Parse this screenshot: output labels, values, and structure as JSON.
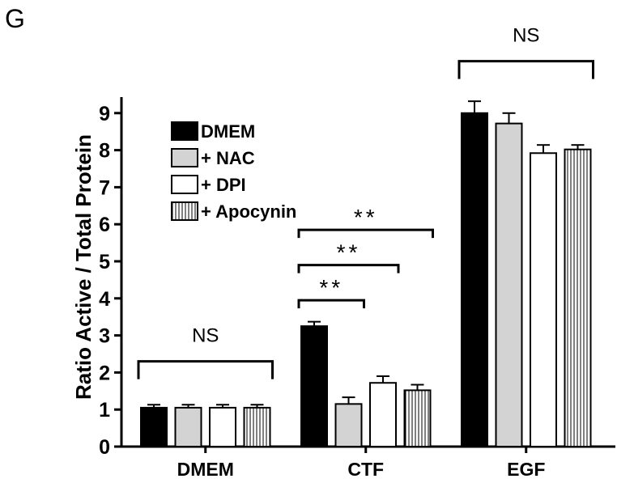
{
  "panel_label": "G",
  "chart_data": {
    "type": "bar",
    "title": "",
    "xlabel": "",
    "ylabel": "Ratio Active / Total Protein",
    "ylim": [
      0,
      9.5
    ],
    "yticks": [
      "0",
      "1",
      "2",
      "3",
      "4",
      "5",
      "6",
      "7",
      "8",
      "9"
    ],
    "categories": [
      "DMEM",
      "CTF",
      "EGF"
    ],
    "legend_position": "top-left",
    "series": [
      {
        "name": "DMEM",
        "fill": "#000000",
        "pattern": "solid",
        "values": [
          1.05,
          3.25,
          9.0
        ],
        "errors": [
          0.08,
          0.12,
          0.32
        ]
      },
      {
        "name": "+ NAC",
        "fill": "#d3d3d3",
        "pattern": "solid",
        "values": [
          1.05,
          1.15,
          8.72
        ],
        "errors": [
          0.08,
          0.18,
          0.28
        ]
      },
      {
        "name": "+ DPI",
        "fill": "#ffffff",
        "pattern": "solid",
        "values": [
          1.05,
          1.72,
          7.92
        ],
        "errors": [
          0.08,
          0.18,
          0.22
        ]
      },
      {
        "name": "+ Apocynin",
        "fill": "#ffffff",
        "pattern": "vertical-stripes",
        "values": [
          1.05,
          1.52,
          8.02
        ],
        "errors": [
          0.08,
          0.15,
          0.12
        ]
      }
    ],
    "annotations": [
      {
        "group": 0,
        "from_series": 0,
        "to_series": 3,
        "label": "NS",
        "level": 2.3
      },
      {
        "group": 1,
        "from_series": 0,
        "to_series": 1,
        "label": "**",
        "level": 3.95
      },
      {
        "group": 1,
        "from_series": 0,
        "to_series": 2,
        "label": "**",
        "level": 4.9
      },
      {
        "group": 1,
        "from_series": 0,
        "to_series": 3,
        "label": "**",
        "level": 5.85
      },
      {
        "group": 2,
        "from_series": 0,
        "to_series": 3,
        "label": "NS",
        "level": 10.4
      }
    ]
  }
}
